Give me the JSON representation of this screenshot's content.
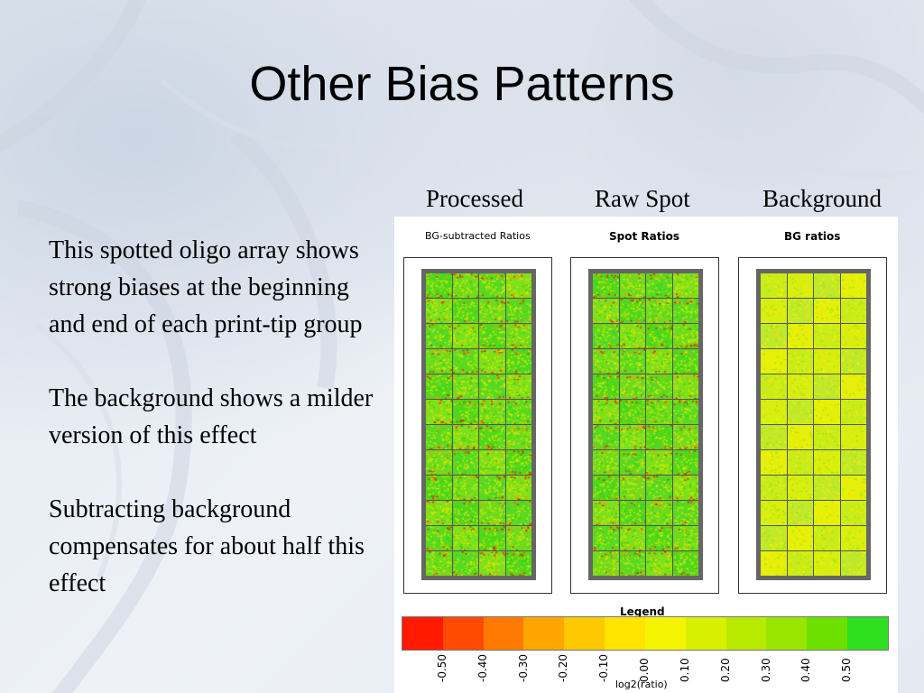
{
  "slide": {
    "title": "Other Bias Patterns",
    "column_headers": [
      "Processed",
      "Raw Spot",
      "Background"
    ],
    "paragraphs": [
      "This spotted oligo array shows strong biases at the beginning and end of each print-tip group",
      "The background shows a milder version of this effect",
      "Subtracting background compensates for about half this effect"
    ]
  },
  "figure": {
    "panels": [
      {
        "label": "BG-subtracted Ratios"
      },
      {
        "label": "Spot Ratios"
      },
      {
        "label": "BG ratios"
      }
    ],
    "legend_title": "Legend",
    "axis_label": "log2(ratio)",
    "legend_colors": [
      "#ff1a00",
      "#ff4a00",
      "#ff7a00",
      "#ffa500",
      "#ffc800",
      "#ffe400",
      "#f4f400",
      "#d7f000",
      "#b8ea00",
      "#98e600",
      "#6ee000",
      "#2ee020"
    ],
    "ticks": [
      "-0.50",
      "-0.40",
      "-0.30",
      "-0.20",
      "-0.10",
      "0.00",
      "0.10",
      "0.20",
      "0.30",
      "0.40",
      "0.50"
    ]
  }
}
